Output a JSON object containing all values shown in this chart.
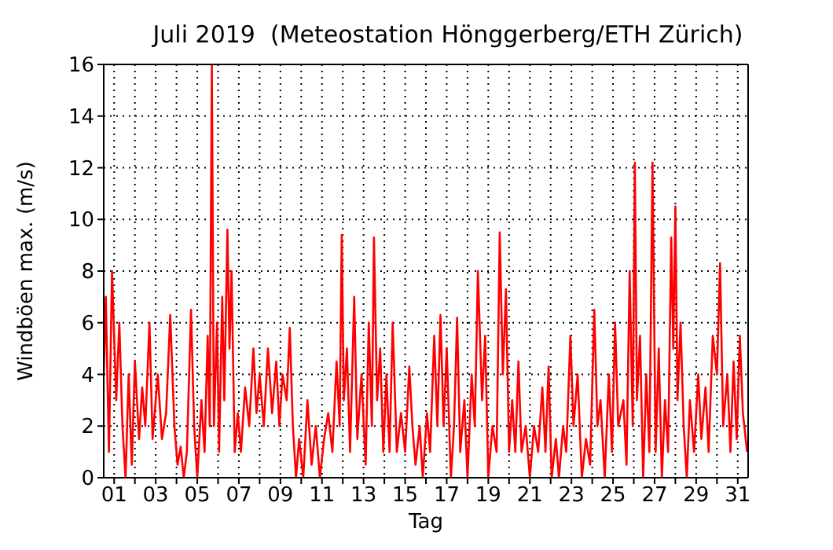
{
  "chart_data": {
    "type": "line",
    "title": "Juli 2019  (Meteostation Hönggerberg/ETH Zürich)",
    "xlabel": "Tag",
    "ylabel": "Windböen max. (m/s)",
    "xlim": [
      1,
      32
    ],
    "xticks": [
      {
        "value": 1.5,
        "label": "01"
      },
      {
        "value": 2.5,
        "label": null
      },
      {
        "value": 3.5,
        "label": "03"
      },
      {
        "value": 4.5,
        "label": null
      },
      {
        "value": 5.5,
        "label": "05"
      },
      {
        "value": 6.5,
        "label": null
      },
      {
        "value": 7.5,
        "label": "07"
      },
      {
        "value": 8.5,
        "label": null
      },
      {
        "value": 9.5,
        "label": "09"
      },
      {
        "value": 10.5,
        "label": null
      },
      {
        "value": 11.5,
        "label": "11"
      },
      {
        "value": 12.5,
        "label": null
      },
      {
        "value": 13.5,
        "label": "13"
      },
      {
        "value": 14.5,
        "label": null
      },
      {
        "value": 15.5,
        "label": "15"
      },
      {
        "value": 16.5,
        "label": null
      },
      {
        "value": 17.5,
        "label": "17"
      },
      {
        "value": 18.5,
        "label": null
      },
      {
        "value": 19.5,
        "label": "19"
      },
      {
        "value": 20.5,
        "label": null
      },
      {
        "value": 21.5,
        "label": "21"
      },
      {
        "value": 22.5,
        "label": null
      },
      {
        "value": 23.5,
        "label": "23"
      },
      {
        "value": 24.5,
        "label": null
      },
      {
        "value": 25.5,
        "label": "25"
      },
      {
        "value": 26.5,
        "label": null
      },
      {
        "value": 27.5,
        "label": "27"
      },
      {
        "value": 28.5,
        "label": null
      },
      {
        "value": 29.5,
        "label": "29"
      },
      {
        "value": 30.5,
        "label": null
      },
      {
        "value": 31.5,
        "label": "31"
      }
    ],
    "ylim": [
      0,
      16
    ],
    "yticks": [
      0,
      2,
      4,
      6,
      8,
      10,
      12,
      14,
      16
    ],
    "grid": true,
    "marker": "none",
    "line_style": "solid",
    "legend": false,
    "series": [
      {
        "color": "#ff0000",
        "x": [
          1.0,
          1.1,
          1.25,
          1.4,
          1.6,
          1.75,
          1.9,
          2.05,
          2.2,
          2.35,
          2.5,
          2.7,
          2.85,
          3.0,
          3.2,
          3.35,
          3.6,
          3.8,
          4.0,
          4.2,
          4.4,
          4.55,
          4.7,
          4.85,
          5.0,
          5.2,
          5.35,
          5.5,
          5.7,
          5.85,
          6.0,
          6.1,
          6.2,
          6.3,
          6.45,
          6.55,
          6.7,
          6.8,
          6.95,
          7.05,
          7.15,
          7.3,
          7.45,
          7.6,
          7.8,
          8.0,
          8.2,
          8.35,
          8.5,
          8.7,
          8.9,
          9.1,
          9.3,
          9.45,
          9.6,
          9.8,
          9.95,
          10.1,
          10.25,
          10.4,
          10.6,
          10.8,
          11.0,
          11.2,
          11.4,
          11.6,
          11.8,
          12.0,
          12.2,
          12.35,
          12.45,
          12.55,
          12.7,
          12.85,
          13.05,
          13.2,
          13.4,
          13.6,
          13.75,
          13.9,
          14.0,
          14.15,
          14.3,
          14.45,
          14.6,
          14.75,
          14.9,
          15.1,
          15.3,
          15.5,
          15.7,
          15.85,
          16.0,
          16.2,
          16.35,
          16.55,
          16.7,
          16.9,
          17.05,
          17.2,
          17.35,
          17.5,
          17.7,
          17.85,
          18.0,
          18.15,
          18.35,
          18.5,
          18.7,
          18.85,
          19.0,
          19.2,
          19.35,
          19.5,
          19.7,
          19.9,
          20.05,
          20.2,
          20.35,
          20.5,
          20.65,
          20.8,
          20.95,
          21.1,
          21.3,
          21.5,
          21.7,
          21.9,
          22.1,
          22.25,
          22.4,
          22.55,
          22.75,
          22.9,
          23.1,
          23.25,
          23.45,
          23.6,
          23.8,
          24.0,
          24.2,
          24.4,
          24.6,
          24.75,
          24.9,
          25.1,
          25.3,
          25.45,
          25.6,
          25.75,
          26.0,
          26.15,
          26.3,
          26.45,
          26.55,
          26.65,
          26.8,
          26.95,
          27.1,
          27.25,
          27.4,
          27.55,
          27.7,
          27.85,
          28.0,
          28.15,
          28.3,
          28.4,
          28.5,
          28.6,
          28.75,
          28.9,
          29.05,
          29.2,
          29.4,
          29.6,
          29.75,
          29.95,
          30.1,
          30.3,
          30.5,
          30.65,
          30.8,
          31.0,
          31.15,
          31.3,
          31.45,
          31.6,
          31.75,
          31.95
        ],
        "values": [
          4,
          7,
          1,
          8,
          3,
          6,
          2,
          0,
          4,
          0.5,
          4.5,
          1.5,
          3.5,
          2,
          6,
          1.5,
          4,
          1.5,
          2.5,
          6.3,
          2,
          0.5,
          1.2,
          0,
          1,
          6.5,
          2,
          0,
          3,
          1,
          5.5,
          2,
          16,
          2,
          6,
          1,
          7,
          3,
          9.6,
          5,
          8,
          1,
          2.5,
          1,
          3.5,
          2,
          5,
          2.5,
          4,
          2,
          5,
          2.5,
          4.5,
          2,
          4,
          3,
          5.8,
          2,
          0,
          1.5,
          0,
          3,
          0.5,
          2,
          0,
          1.5,
          2.5,
          1,
          4.5,
          2,
          9.4,
          3,
          5,
          1,
          7,
          1.5,
          4,
          0.5,
          6,
          2,
          9.3,
          3,
          5,
          1,
          4,
          1,
          6,
          1,
          2.5,
          1,
          4.3,
          2,
          0.5,
          2,
          0,
          2.5,
          1,
          5.5,
          2,
          6.3,
          2,
          5,
          0,
          2,
          6.2,
          1,
          3,
          0,
          4,
          2,
          8,
          3,
          5.5,
          0,
          2,
          1,
          9.5,
          4,
          7.3,
          1,
          3,
          1,
          4.5,
          1,
          2,
          0,
          2,
          1,
          3.5,
          1,
          4.3,
          0,
          1.5,
          0,
          2,
          1,
          5.5,
          2,
          4,
          0,
          1.5,
          0.5,
          6.5,
          2,
          3,
          0,
          4,
          1,
          6,
          2,
          3,
          0.5,
          8,
          2,
          12.2,
          3,
          5.5,
          0,
          4,
          1,
          12.2,
          1,
          5,
          0,
          3,
          1,
          9.3,
          5,
          10.5,
          3,
          6,
          2,
          0,
          3,
          1,
          4,
          1.5,
          3.5,
          1,
          5.5,
          4,
          8.3,
          2,
          4,
          1,
          4.5,
          1.5,
          5.5,
          2.5,
          1
        ]
      }
    ]
  }
}
